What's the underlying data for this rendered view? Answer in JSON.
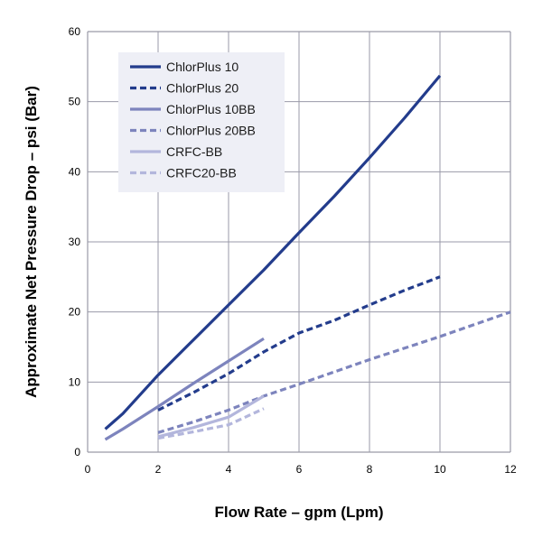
{
  "chart_data": {
    "type": "line",
    "title": "",
    "xlabel": "Flow Rate – gpm (Lpm)",
    "ylabel": "Approximate Net Pressure Drop – psi (Bar)",
    "xlim": [
      0,
      12
    ],
    "ylim": [
      0,
      60
    ],
    "x_ticks": [
      0,
      2,
      4,
      6,
      8,
      10,
      12
    ],
    "y_ticks": [
      0,
      10,
      20,
      30,
      40,
      50,
      60
    ],
    "grid": true,
    "legend_position": "top-left",
    "colors": {
      "grid": "#9a9aa8",
      "legend_bg": "#eeeff6",
      "dark": "#233c8c",
      "medium": "#7d84bd",
      "light": "#b3b6dc"
    },
    "series": [
      {
        "name": "ChlorPlus 10",
        "color": "#233c8c",
        "dash": "solid",
        "x": [
          0.5,
          1,
          2,
          3,
          4,
          5,
          6,
          7,
          8,
          9,
          10
        ],
        "y": [
          3.3,
          5.5,
          11,
          16,
          21,
          26,
          31.3,
          36.5,
          42,
          47.7,
          53.7
        ]
      },
      {
        "name": "ChlorPlus 20",
        "color": "#233c8c",
        "dash": "dashed",
        "x": [
          2,
          3,
          4,
          5,
          6,
          7,
          8,
          9,
          10
        ],
        "y": [
          6,
          8.5,
          11.2,
          14.3,
          17,
          18.8,
          21,
          23.1,
          25
        ]
      },
      {
        "name": "ChlorPlus 10BB",
        "color": "#7d84bd",
        "dash": "solid",
        "x": [
          0.5,
          1,
          2,
          3,
          4,
          5
        ],
        "y": [
          1.8,
          3.3,
          6.5,
          9.8,
          13,
          16.2
        ]
      },
      {
        "name": "ChlorPlus 20BB",
        "color": "#7d84bd",
        "dash": "dashed",
        "x": [
          2,
          3,
          4,
          5,
          6,
          8,
          10,
          12
        ],
        "y": [
          2.8,
          4.3,
          6,
          8,
          9.7,
          13.2,
          16.5,
          20
        ]
      },
      {
        "name": "CRFC-BB",
        "color": "#b3b6dc",
        "dash": "solid",
        "x": [
          2,
          3,
          4,
          5
        ],
        "y": [
          2.2,
          3.5,
          5,
          8
        ]
      },
      {
        "name": "CRFC20-BB",
        "color": "#b3b6dc",
        "dash": "dashed",
        "x": [
          2,
          3,
          4,
          5
        ],
        "y": [
          2,
          2.9,
          3.9,
          6.2
        ]
      }
    ]
  }
}
